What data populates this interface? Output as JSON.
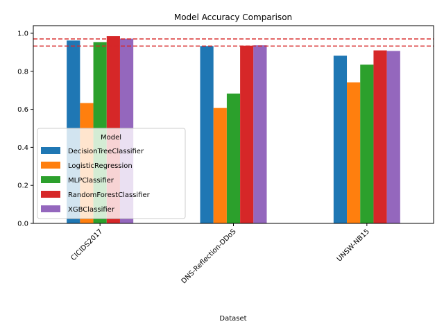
{
  "chart_data": {
    "type": "bar",
    "title": "Model Accuracy Comparison",
    "xlabel": "Dataset",
    "ylabel": "",
    "categories": [
      "CICIDS2017",
      "DNS-Reflection-DDoS",
      "UNSW-NB15"
    ],
    "series": [
      {
        "name": "DecisionTreeClassifier",
        "color": "#1f77b4",
        "values": [
          0.962,
          0.933,
          0.882
        ]
      },
      {
        "name": "LogisticRegression",
        "color": "#ff7f0e",
        "values": [
          0.633,
          0.607,
          0.742
        ]
      },
      {
        "name": "MLPClassifier",
        "color": "#2ca02c",
        "values": [
          0.953,
          0.683,
          0.835
        ]
      },
      {
        "name": "RandomForestClassifier",
        "color": "#d62728",
        "values": [
          0.985,
          0.935,
          0.91
        ]
      },
      {
        "name": "XGBClassifier",
        "color": "#9467bd",
        "values": [
          0.972,
          0.937,
          0.907
        ]
      }
    ],
    "ylim": [
      0,
      1.04
    ],
    "yticks": [
      "0.0",
      "0.2",
      "0.4",
      "0.6",
      "0.8",
      "1.0"
    ],
    "reference_lines": [
      {
        "y": 0.97,
        "color": "#d62728",
        "style": "dashed"
      },
      {
        "y": 0.933,
        "color": "#d62728",
        "style": "dashed"
      }
    ],
    "legend": {
      "title": "Model",
      "position": "lower-left"
    },
    "grid": false,
    "xtick_rotation": 45
  }
}
